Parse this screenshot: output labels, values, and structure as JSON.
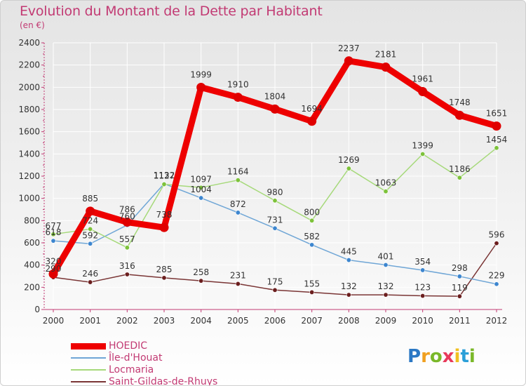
{
  "header": {
    "title": "Evolution du Montant de la Dette par Habitant",
    "subtitle": "(en €)"
  },
  "logo": {
    "text": "Proxiti",
    "letters": [
      {
        "ch": "P",
        "color": "#2b78c4"
      },
      {
        "ch": "r",
        "color": "#f0a020"
      },
      {
        "ch": "o",
        "color": "#7ab829"
      },
      {
        "ch": "x",
        "color": "#e83a5b"
      },
      {
        "ch": "i",
        "color": "#f0c020"
      },
      {
        "ch": "t",
        "color": "#2b9fd8"
      },
      {
        "ch": "i",
        "color": "#7ab829"
      }
    ]
  },
  "chart_data": {
    "type": "line",
    "x": [
      "2000",
      "2001",
      "2002",
      "2003",
      "2004",
      "2005",
      "2006",
      "2007",
      "2008",
      "2009",
      "2010",
      "2011",
      "2012"
    ],
    "ylim": [
      0,
      2400
    ],
    "yticks": [
      0,
      200,
      400,
      600,
      800,
      1000,
      1200,
      1400,
      1600,
      1800,
      2000,
      2200,
      2400
    ],
    "grid": true,
    "legend_position": "bottom-left",
    "series": [
      {
        "name": "HOEDIC",
        "color": "#ee0000",
        "dot": "#e00000",
        "width": 9,
        "values": [
          320,
          885,
          786,
          738,
          1999,
          1910,
          1804,
          1694,
          2237,
          2181,
          1961,
          1748,
          1651
        ]
      },
      {
        "name": "Île-d'Houat",
        "color": "#6fa6d6",
        "dot": "#3d86cf",
        "width": 1.5,
        "values": [
          618,
          592,
          760,
          1132,
          1004,
          872,
          731,
          582,
          445,
          401,
          354,
          298,
          229
        ]
      },
      {
        "name": "Locmaria",
        "color": "#a6d97a",
        "dot": "#7dc23a",
        "width": 1.5,
        "values": [
          677,
          724,
          557,
          1127,
          1097,
          1164,
          980,
          800,
          1269,
          1063,
          1399,
          1186,
          1454
        ]
      },
      {
        "name": "Saint-Gildas-de-Rhuys",
        "color": "#7a3535",
        "dot": "#6b1e1e",
        "width": 1.5,
        "values": [
          290,
          246,
          316,
          285,
          258,
          231,
          175,
          155,
          132,
          132,
          123,
          119,
          596
        ]
      }
    ]
  }
}
